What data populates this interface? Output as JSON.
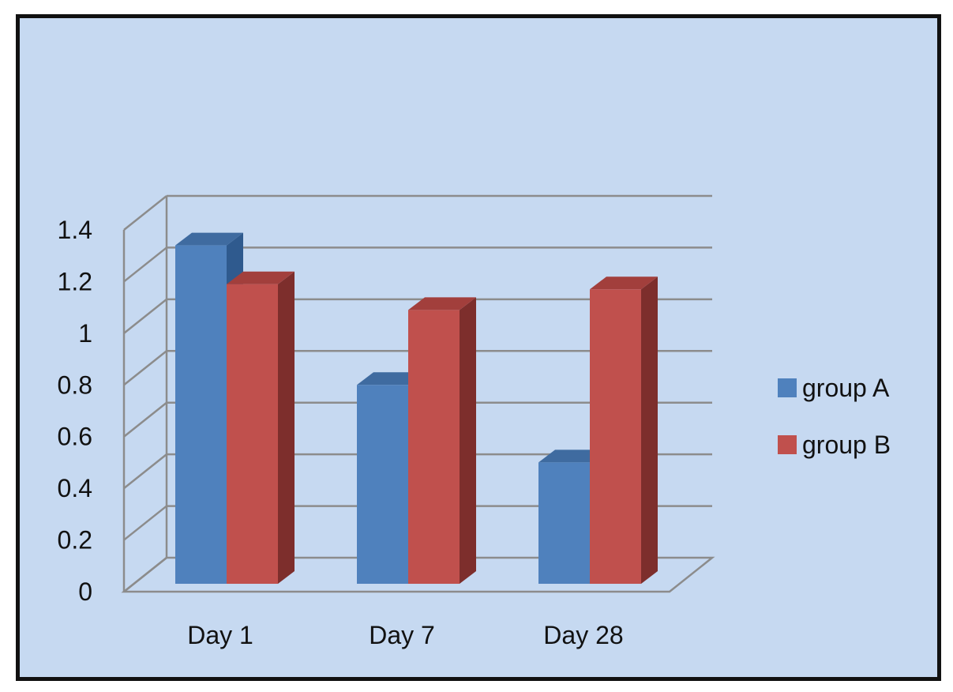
{
  "chart_data": {
    "type": "bar",
    "style": "3d-clustered-column",
    "categories": [
      "Day 1",
      "Day 7",
      "Day 28"
    ],
    "series": [
      {
        "name": "group A",
        "values": [
          1.34,
          0.8,
          0.5
        ],
        "color": "#4f81bd",
        "side_color": "#2f5a8e",
        "top_color": "#3f6ba0"
      },
      {
        "name": "group B",
        "values": [
          1.19,
          1.09,
          1.17
        ],
        "color": "#c0504d",
        "side_color": "#7d2e2c",
        "top_color": "#a23f3c"
      }
    ],
    "y_ticks": [
      "0",
      "0.2",
      "0.4",
      "0.6",
      "0.8",
      "1",
      "1.2",
      "1.4"
    ],
    "ylim": [
      0,
      1.4
    ],
    "grid": true,
    "legend_position": "right",
    "background": "#c6d9f1",
    "gridline_color": "#8c8c8c"
  }
}
